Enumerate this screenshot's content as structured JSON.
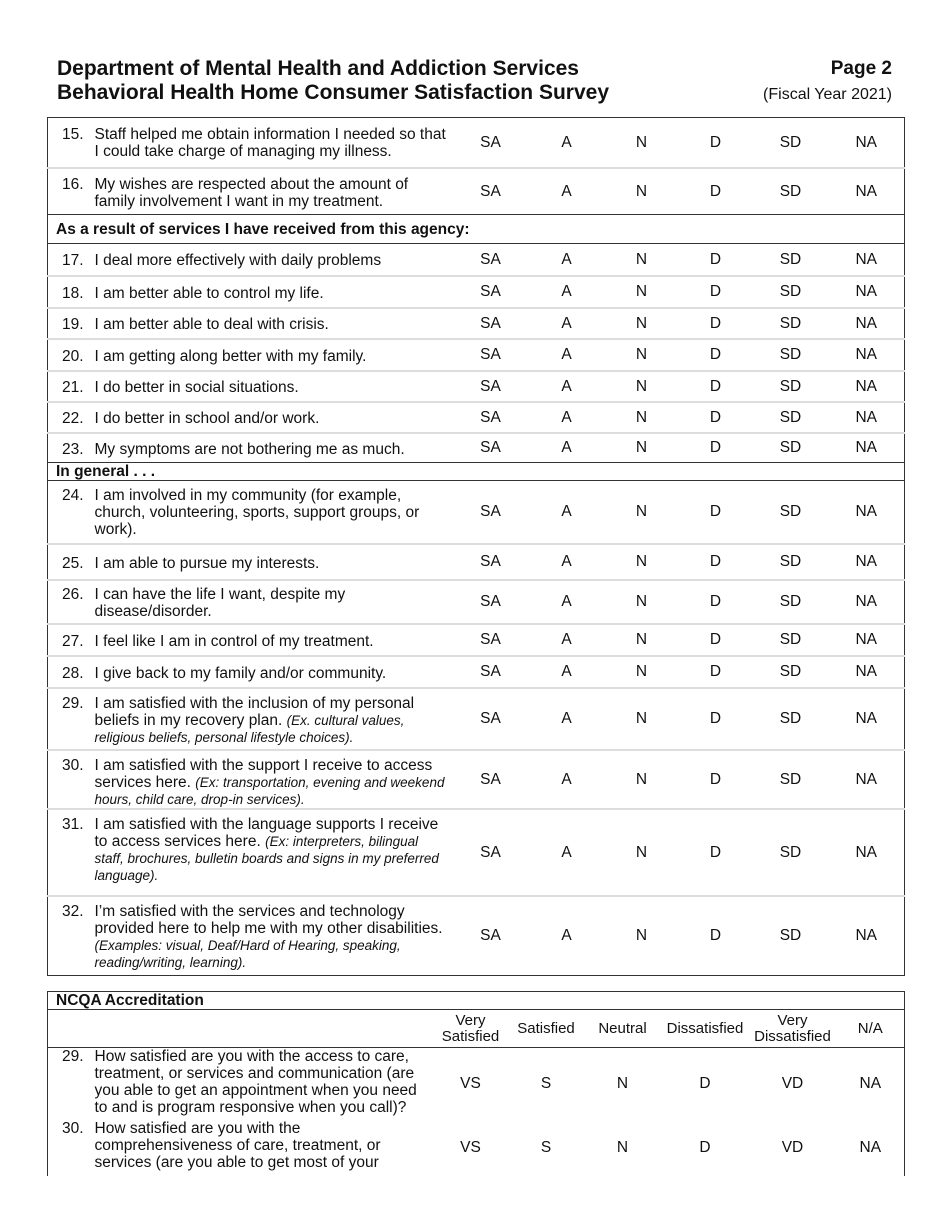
{
  "header": {
    "title_line1": "Department of Mental Health and Addiction Services",
    "title_line2": "Behavioral Health Home Consumer Satisfaction Survey",
    "page": "Page 2",
    "fiscal_year": "(Fiscal Year 2021)"
  },
  "survey": {
    "options": [
      "SA",
      "A",
      "N",
      "D",
      "SD",
      "NA"
    ],
    "rows": [
      {
        "type": "q",
        "num": "15.",
        "text": "Staff helped me obtain information I needed so that I could take charge of managing my illness.",
        "note": ""
      },
      {
        "type": "q",
        "num": "16.",
        "text": "My wishes are respected about the amount of family involvement I want in my treatment.",
        "note": ""
      },
      {
        "type": "section",
        "text": "As a result of services I have received from this agency:"
      },
      {
        "type": "q",
        "num": "17.",
        "text": "I deal more effectively with daily problems",
        "note": ""
      },
      {
        "type": "q",
        "num": "18.",
        "text": "I am better able to control my life.",
        "note": ""
      },
      {
        "type": "q",
        "num": "19.",
        "text": "I am better able to deal with crisis.",
        "note": ""
      },
      {
        "type": "q",
        "num": "20.",
        "text": "I am getting along better with my family.",
        "note": ""
      },
      {
        "type": "q",
        "num": "21.",
        "text": "I do better in social situations.",
        "note": ""
      },
      {
        "type": "q",
        "num": "22.",
        "text": "I do better in school and/or work.",
        "note": ""
      },
      {
        "type": "q",
        "num": "23.",
        "text": "My symptoms are not bothering me as much.",
        "note": ""
      },
      {
        "type": "section",
        "text": "In general . . ."
      },
      {
        "type": "q",
        "num": "24.",
        "text": "I am involved in my community (for example, church, volunteering, sports, support groups, or work).",
        "note": ""
      },
      {
        "type": "q",
        "num": "25.",
        "text": "I am able to pursue my interests.",
        "note": ""
      },
      {
        "type": "q",
        "num": "26.",
        "text": "I can have the life I want, despite my disease/disorder.",
        "note": ""
      },
      {
        "type": "q",
        "num": "27.",
        "text": "I feel like I am in control of my treatment.",
        "note": ""
      },
      {
        "type": "q",
        "num": "28.",
        "text": "I give back to my family and/or community.",
        "note": ""
      },
      {
        "type": "q",
        "num": "29.",
        "text": "I am satisfied with the inclusion of my personal beliefs in my recovery plan.",
        "note": "(Ex. cultural values, religious beliefs, personal lifestyle choices)."
      },
      {
        "type": "q",
        "num": "30.",
        "text": "I am satisfied with the support I receive to access services here.",
        "note": "(Ex: transportation, evening and weekend hours, child care, drop-in services)."
      },
      {
        "type": "q",
        "num": "31.",
        "text": "I am satisfied with the language supports I receive to access services here.",
        "note": "(Ex: interpreters, bilingual staff, brochures, bulletin boards and signs in my preferred language)."
      },
      {
        "type": "q",
        "num": "32.",
        "text": "I’m satisfied with the services and technology provided here to help me with my other disabilities.",
        "note": "(Examples: visual, Deaf/Hard of Hearing, speaking, reading/writing, learning)."
      }
    ]
  },
  "ncqa": {
    "title": "NCQA Accreditation",
    "column_headers": [
      "Very Satisfied",
      "Satisfied",
      "Neutral",
      "Dissatisfied",
      "Very Dissatisfied",
      "N/A"
    ],
    "options": [
      "VS",
      "S",
      "N",
      "D",
      "VD",
      "NA"
    ],
    "rows": [
      {
        "num": "29.",
        "text": "How satisfied are you with the access to care, treatment, or services and communication (are you able to get an appointment when you need to and is program responsive when you call)?"
      },
      {
        "num": "30.",
        "text": "How satisfied are you with the comprehensiveness of care, treatment, or services (are you able to get most of your"
      }
    ]
  }
}
